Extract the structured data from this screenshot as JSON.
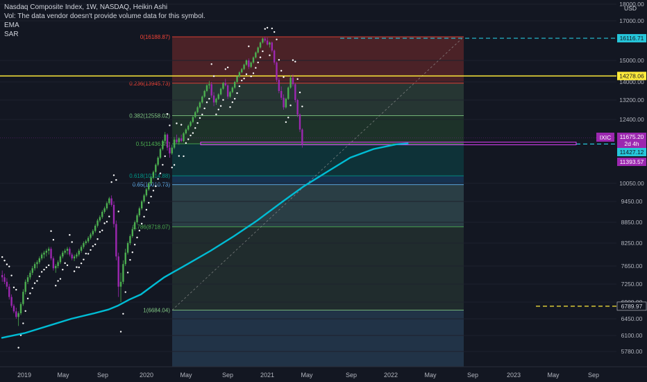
{
  "legend": {
    "title": "Nasdaq Composite Index, 1W, NASDAQ, Heikin Ashi",
    "vol_note": "Vol: The data vendor doesn't provide volume data for this symbol.",
    "ema": "EMA",
    "sar": "SAR"
  },
  "currency": "USD",
  "symbol_tag": "IXIC",
  "colors": {
    "background": "#131722",
    "up": "#4caf50",
    "down": "#9c27b0",
    "ema": "#00bcd4",
    "sar": "#ffffff",
    "yellow_line": "#ffeb3b",
    "cyan_tag": "#26c6da",
    "magenta_tag": "#9c27b0"
  },
  "chart_data": {
    "type": "candlestick",
    "y_axis": {
      "min": 5500,
      "max": 18000,
      "ticks": [
        "5780.00",
        "6100.00",
        "6450.00",
        "6900.00",
        "7250.00",
        "7650.00",
        "8250.00",
        "8850.00",
        "9450.00",
        "10050.00",
        "12400.00",
        "13200.00",
        "14000.00",
        "15000.00",
        "17000.00",
        "18000.00"
      ]
    },
    "x_axis": {
      "labels": [
        "2019",
        "May",
        "Sep",
        "2020",
        "May",
        "Sep",
        "2021",
        "May",
        "Sep",
        "2022",
        "May",
        "Sep",
        "2023",
        "May",
        "Sep"
      ]
    },
    "fib_levels": [
      {
        "label": "0(16188.87)",
        "value": 16188.87,
        "color": "#f44336"
      },
      {
        "label": "0.236(13945.73)",
        "value": 13945.73,
        "color": "#f44336"
      },
      {
        "label": "0.382(12558.02)",
        "value": 12558.02,
        "color": "#81c784"
      },
      {
        "label": "0.5(11436.45)",
        "value": 11436.45,
        "color": "#4caf50"
      },
      {
        "label": "0.618(10314.88)",
        "value": 10314.88,
        "color": "#009688"
      },
      {
        "label": "0.65(10010.73)",
        "value": 10010.73,
        "color": "#64b5f6"
      },
      {
        "label": "0.786(8718.07)",
        "value": 8718.07,
        "color": "#4caf50"
      },
      {
        "label": "1(6684.04)",
        "value": 6684.04,
        "color": "#81c784"
      }
    ],
    "price_tags": [
      {
        "value": "16116.71",
        "style": "cyan"
      },
      {
        "value": "14278.06",
        "style": "yellow"
      },
      {
        "value": "11675.20",
        "style": "magenta"
      },
      {
        "value": "2d 4h",
        "style": "magenta-sub"
      },
      {
        "value": "11427.12",
        "style": "cyan"
      },
      {
        "value": "11393.57",
        "style": "magenta"
      },
      {
        "value": "6789.97",
        "style": "plain"
      }
    ],
    "horizontal_lines": [
      {
        "value": 14278.06,
        "style": "solid-yellow"
      },
      {
        "value": 16116.71,
        "style": "dashed-cyan"
      },
      {
        "value": 11427.12,
        "style": "dashed-cyan"
      },
      {
        "value": 6789.97,
        "style": "dashed-yellow"
      }
    ],
    "candles_weekly": [
      [
        7450,
        7550,
        7300,
        7400
      ],
      [
        7400,
        7480,
        7250,
        7300
      ],
      [
        7300,
        7380,
        7150,
        7200
      ],
      [
        7200,
        7250,
        6950,
        7000
      ],
      [
        7000,
        7050,
        6750,
        6800
      ],
      [
        6800,
        6850,
        6600,
        6650
      ],
      [
        6650,
        6750,
        6450,
        6500
      ],
      [
        6500,
        6650,
        6300,
        6600
      ],
      [
        6600,
        6900,
        6550,
        6850
      ],
      [
        6850,
        7150,
        6800,
        7100
      ],
      [
        7100,
        7350,
        7050,
        7300
      ],
      [
        7300,
        7450,
        7250,
        7400
      ],
      [
        7400,
        7550,
        7350,
        7500
      ],
      [
        7500,
        7650,
        7450,
        7600
      ],
      [
        7600,
        7750,
        7550,
        7700
      ],
      [
        7700,
        7800,
        7600,
        7750
      ],
      [
        7750,
        7900,
        7700,
        7850
      ],
      [
        7850,
        8000,
        7800,
        7950
      ],
      [
        7950,
        8050,
        7850,
        8000
      ],
      [
        8000,
        8100,
        7900,
        8050
      ],
      [
        8050,
        8150,
        7950,
        8100
      ],
      [
        8100,
        8150,
        7800,
        7850
      ],
      [
        7850,
        7900,
        7550,
        7600
      ],
      [
        7600,
        7700,
        7500,
        7650
      ],
      [
        7650,
        7800,
        7600,
        7750
      ],
      [
        7750,
        7950,
        7700,
        7900
      ],
      [
        7900,
        8050,
        7850,
        8000
      ],
      [
        8000,
        8100,
        7950,
        8050
      ],
      [
        8050,
        8150,
        7950,
        8100
      ],
      [
        8100,
        8150,
        7900,
        7950
      ],
      [
        7950,
        8000,
        7800,
        7850
      ],
      [
        7850,
        7950,
        7780,
        7900
      ],
      [
        7900,
        8000,
        7850,
        7950
      ],
      [
        7950,
        8100,
        7900,
        8050
      ],
      [
        8050,
        8200,
        8000,
        8150
      ],
      [
        8150,
        8300,
        8100,
        8250
      ],
      [
        8250,
        8350,
        8200,
        8300
      ],
      [
        8300,
        8450,
        8250,
        8400
      ],
      [
        8400,
        8550,
        8350,
        8500
      ],
      [
        8500,
        8650,
        8450,
        8600
      ],
      [
        8600,
        8800,
        8550,
        8750
      ],
      [
        8750,
        8950,
        8700,
        8900
      ],
      [
        8900,
        9050,
        8850,
        9000
      ],
      [
        9000,
        9200,
        8950,
        9150
      ],
      [
        9150,
        9300,
        9100,
        9250
      ],
      [
        9250,
        9450,
        9200,
        9400
      ],
      [
        9400,
        9600,
        9350,
        9550
      ],
      [
        9550,
        9650,
        9300,
        9350
      ],
      [
        9350,
        9450,
        8700,
        8800
      ],
      [
        8800,
        8900,
        7800,
        7900
      ],
      [
        7900,
        8000,
        7000,
        7200
      ],
      [
        7200,
        7500,
        6900,
        7300
      ],
      [
        7300,
        7800,
        7250,
        7700
      ],
      [
        7700,
        8100,
        7650,
        8000
      ],
      [
        8000,
        8300,
        7950,
        8250
      ],
      [
        8250,
        8500,
        8200,
        8450
      ],
      [
        8450,
        8700,
        8400,
        8650
      ],
      [
        8650,
        8900,
        8600,
        8850
      ],
      [
        8850,
        9100,
        8800,
        9050
      ],
      [
        9050,
        9300,
        9000,
        9250
      ],
      [
        9250,
        9500,
        9200,
        9450
      ],
      [
        9450,
        9700,
        9400,
        9650
      ],
      [
        9650,
        9900,
        9600,
        9850
      ],
      [
        9850,
        10100,
        9800,
        10050
      ],
      [
        10050,
        10300,
        10000,
        10250
      ],
      [
        10250,
        10500,
        10200,
        10450
      ],
      [
        10450,
        10750,
        10400,
        10700
      ],
      [
        10700,
        11000,
        10650,
        10950
      ],
      [
        10950,
        11300,
        10900,
        11250
      ],
      [
        11250,
        11600,
        11200,
        11550
      ],
      [
        11550,
        11900,
        11500,
        11800
      ],
      [
        11800,
        11850,
        11200,
        11300
      ],
      [
        11300,
        11500,
        10950,
        11100
      ],
      [
        11100,
        11400,
        11050,
        11300
      ],
      [
        11300,
        11700,
        11250,
        11600
      ],
      [
        11600,
        11800,
        11450,
        11500
      ],
      [
        11500,
        11700,
        11400,
        11650
      ],
      [
        11650,
        11800,
        11500,
        11550
      ],
      [
        11550,
        11900,
        11500,
        11850
      ],
      [
        11850,
        12050,
        11800,
        12000
      ],
      [
        12000,
        12200,
        11950,
        12150
      ],
      [
        12150,
        12350,
        12100,
        12300
      ],
      [
        12300,
        12550,
        12250,
        12500
      ],
      [
        12500,
        12750,
        12450,
        12700
      ],
      [
        12700,
        12950,
        12650,
        12900
      ],
      [
        12900,
        13150,
        12850,
        13100
      ],
      [
        13100,
        13400,
        13050,
        13350
      ],
      [
        13350,
        13650,
        13300,
        13600
      ],
      [
        13600,
        13900,
        13550,
        13850
      ],
      [
        13850,
        14050,
        13700,
        13900
      ],
      [
        13900,
        14000,
        13300,
        13400
      ],
      [
        13400,
        13550,
        12950,
        13100
      ],
      [
        13100,
        13300,
        13000,
        13250
      ],
      [
        13250,
        13500,
        13200,
        13450
      ],
      [
        13450,
        13750,
        13400,
        13700
      ],
      [
        13700,
        14000,
        13650,
        13950
      ],
      [
        13950,
        14150,
        13800,
        13850
      ],
      [
        13850,
        13900,
        13250,
        13350
      ],
      [
        13350,
        13600,
        13300,
        13550
      ],
      [
        13550,
        13800,
        13500,
        13750
      ],
      [
        13750,
        14050,
        13700,
        14000
      ],
      [
        14000,
        14300,
        13950,
        14250
      ],
      [
        14250,
        14500,
        14200,
        14450
      ],
      [
        14450,
        14650,
        14400,
        14600
      ],
      [
        14600,
        14850,
        14550,
        14800
      ],
      [
        14800,
        15050,
        14750,
        15000
      ],
      [
        15000,
        15100,
        14600,
        14700
      ],
      [
        14700,
        14950,
        14650,
        14900
      ],
      [
        14900,
        15200,
        14850,
        15150
      ],
      [
        15150,
        15450,
        15100,
        15400
      ],
      [
        15400,
        15700,
        15350,
        15650
      ],
      [
        15650,
        15950,
        15600,
        15900
      ],
      [
        15900,
        16150,
        15850,
        16100
      ],
      [
        16100,
        16200,
        15900,
        16000
      ],
      [
        16000,
        16150,
        15750,
        15800
      ],
      [
        15800,
        15950,
        15650,
        15900
      ],
      [
        15900,
        15950,
        15400,
        15500
      ],
      [
        15500,
        15550,
        14800,
        14900
      ],
      [
        14900,
        14950,
        14000,
        14100
      ],
      [
        14100,
        14200,
        13500,
        13600
      ],
      [
        13600,
        13800,
        13200,
        13300
      ],
      [
        13300,
        13450,
        12800,
        12900
      ],
      [
        12900,
        13300,
        12850,
        13250
      ],
      [
        13250,
        13800,
        13200,
        13750
      ],
      [
        13750,
        14300,
        13700,
        14200
      ],
      [
        14200,
        14350,
        13800,
        13900
      ],
      [
        13900,
        13950,
        13100,
        13200
      ],
      [
        13200,
        13250,
        12500,
        12600
      ],
      [
        12600,
        12650,
        11900,
        12000
      ],
      [
        12000,
        12050,
        11300,
        11400
      ]
    ],
    "ema": [
      [
        0,
        6050
      ],
      [
        10,
        6150
      ],
      [
        20,
        6300
      ],
      [
        30,
        6450
      ],
      [
        40,
        6600
      ],
      [
        46,
        6700
      ],
      [
        50,
        6800
      ],
      [
        55,
        6950
      ],
      [
        60,
        7050
      ],
      [
        66,
        7250
      ],
      [
        70,
        7400
      ],
      [
        80,
        7700
      ],
      [
        90,
        8050
      ],
      [
        100,
        8450
      ],
      [
        110,
        8900
      ],
      [
        120,
        9400
      ],
      [
        130,
        9950
      ],
      [
        140,
        10450
      ],
      [
        150,
        10950
      ],
      [
        160,
        11250
      ],
      [
        170,
        11420
      ],
      [
        175,
        11450
      ]
    ]
  }
}
